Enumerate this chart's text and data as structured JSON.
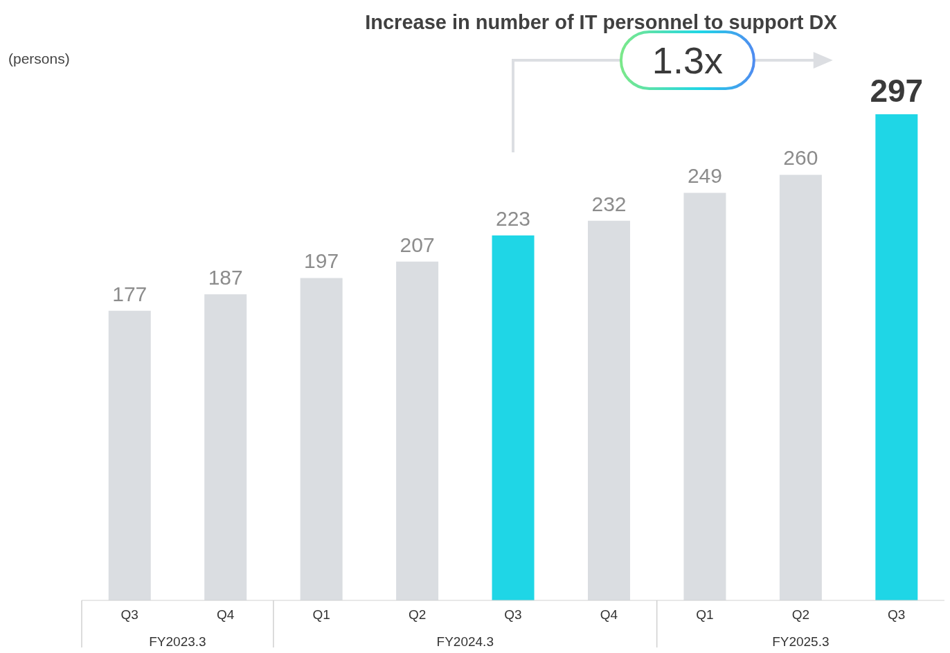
{
  "chart_data": {
    "type": "bar",
    "title": "Increase in number of IT personnel to support DX",
    "ylabel": "(persons)",
    "categories": [
      "Q3",
      "Q4",
      "Q1",
      "Q2",
      "Q3",
      "Q4",
      "Q1",
      "Q2",
      "Q3"
    ],
    "values": [
      177,
      187,
      197,
      207,
      223,
      232,
      249,
      260,
      297
    ],
    "colors": [
      "#dadde1",
      "#dadde1",
      "#dadde1",
      "#dadde1",
      "#1fd6e6",
      "#dadde1",
      "#dadde1",
      "#dadde1",
      "#1fd6e6"
    ],
    "data_labels": true,
    "annotations": [
      "1.3x",
      "FY2023.3",
      "FY2024.3",
      "FY2025.3"
    ]
  }
}
